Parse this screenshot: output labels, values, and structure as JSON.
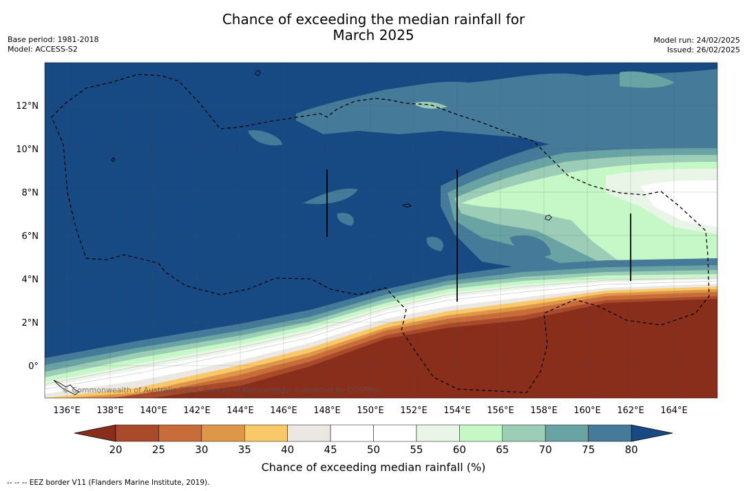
{
  "title": {
    "line1": "Chance of exceeding the median rainfall for",
    "line2": "March 2025"
  },
  "meta": {
    "base_period": "Base period: 1981-2018",
    "model": "Model: ACCESS-S2",
    "model_run": "Model run: 24/02/2025",
    "issued": "Issued: 26/02/2025"
  },
  "map": {
    "lon_ticks": [
      "136°E",
      "138°E",
      "140°E",
      "142°E",
      "144°E",
      "146°E",
      "148°E",
      "150°E",
      "152°E",
      "154°E",
      "156°E",
      "158°E",
      "160°E",
      "162°E",
      "164°E"
    ],
    "lat_ticks": [
      "12°N",
      "10°N",
      "8°N",
      "6°N",
      "4°N",
      "2°N",
      "0°"
    ],
    "lon_range": [
      135,
      166
    ],
    "lat_range": [
      -1.5,
      14
    ],
    "copyright": "© Commonwealth of Australia 2025, Bureau of Meteorology, supported by COSPPac"
  },
  "colorbar": {
    "ticks": [
      "20",
      "25",
      "30",
      "35",
      "40",
      "45",
      "50",
      "55",
      "60",
      "65",
      "70",
      "75",
      "80"
    ],
    "label": "Chance of exceeding median rainfall (%)",
    "below_color": "#8a2e1c",
    "above_color": "#174a82",
    "colors": [
      "#a94a2a",
      "#c86c3a",
      "#de9648",
      "#f9c868",
      "#ebe7e2",
      "#ffffff",
      "#ffffff",
      "#e9f5e6",
      "#c6f7c6",
      "#9ccdb6",
      "#6aa3a3",
      "#457a99"
    ]
  },
  "legend_note": "--  --  -- EEZ border V11 (Flanders Marine Institute, 2019)."
}
